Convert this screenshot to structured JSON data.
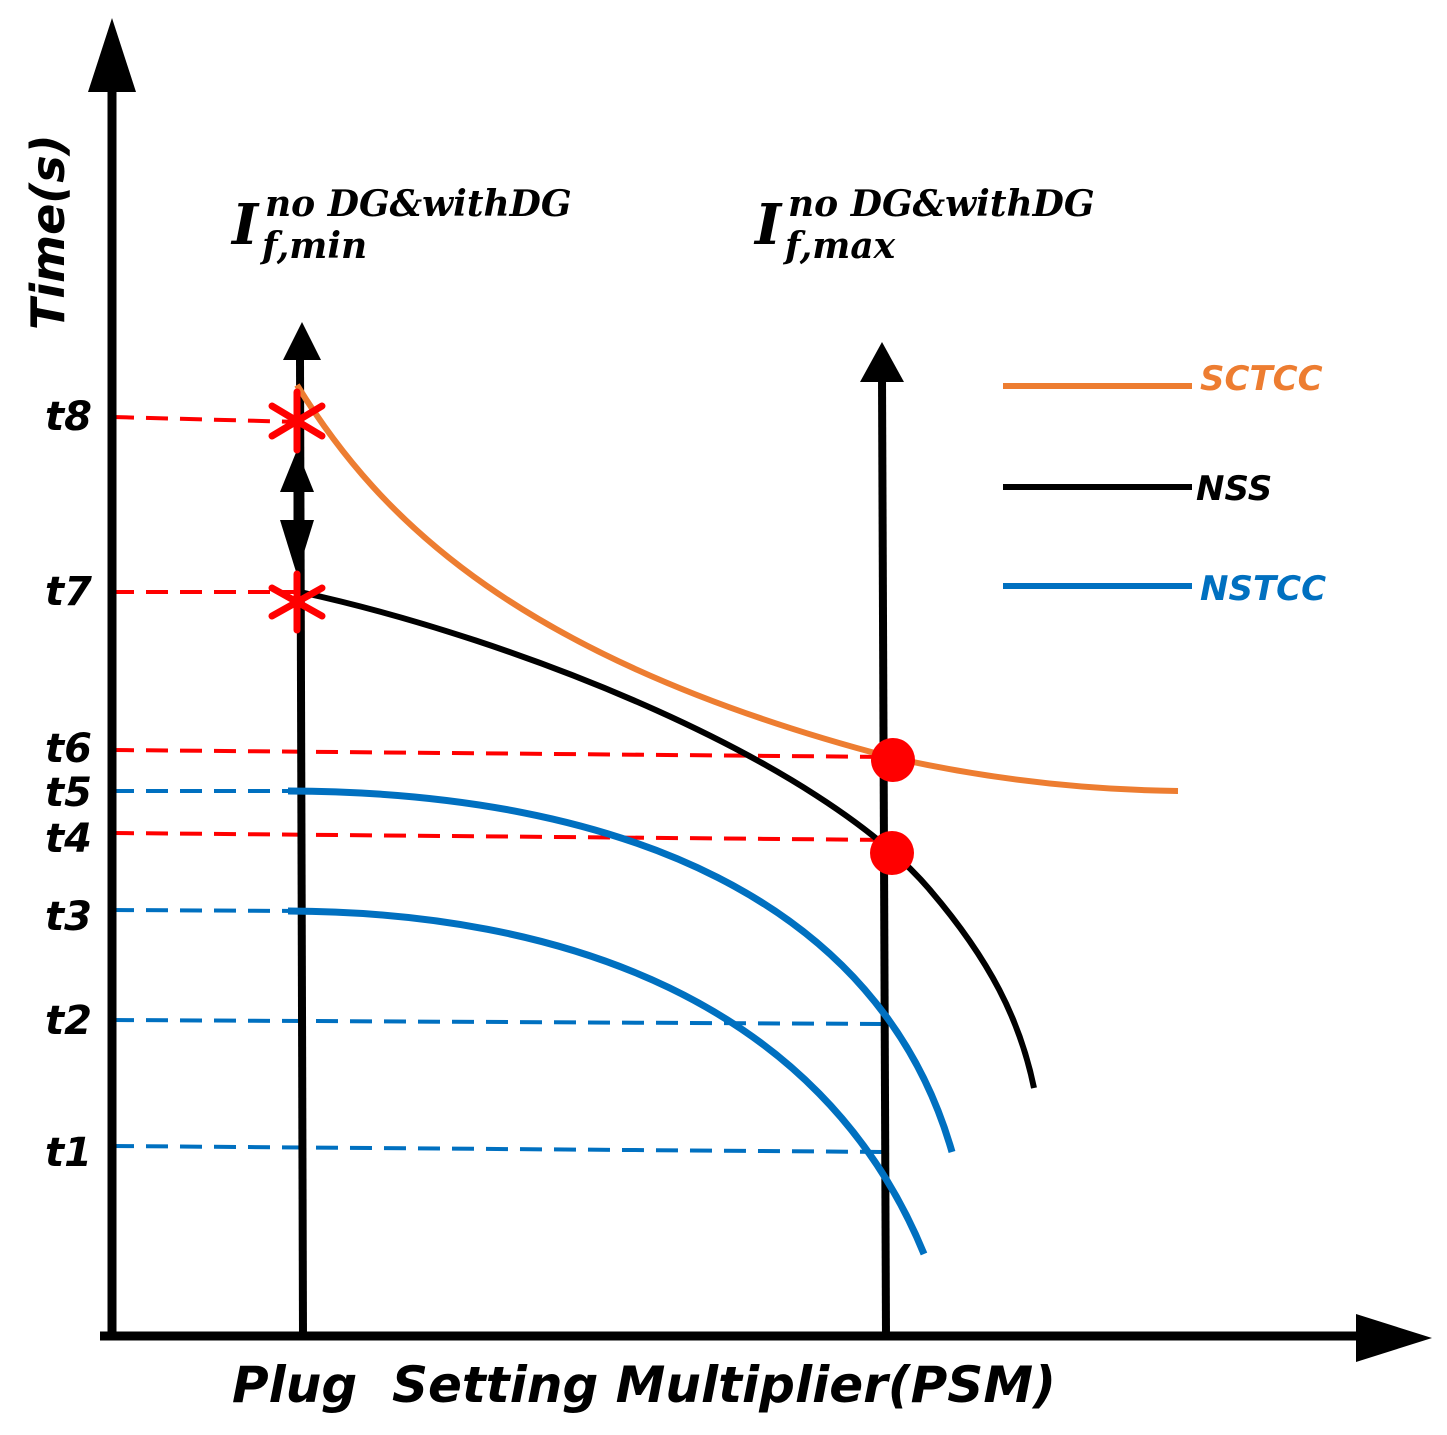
{
  "chart_data": {
    "type": "line",
    "title": "",
    "xlabel": "Plug  Setting Multiplier(PSM)",
    "ylabel": "Time(s)",
    "time_levels": [
      "t1",
      "t2",
      "t3",
      "t4",
      "t5",
      "t6",
      "t7",
      "t8"
    ],
    "fault_markers": [
      {
        "base": "I",
        "sup": "no DG&withDG",
        "sub": "f,min"
      },
      {
        "base": "I",
        "sup": "no DG&withDG",
        "sub": "f,max"
      }
    ],
    "legend": {
      "position": "top-right",
      "entries": [
        {
          "name": "SCTCC",
          "color": "#ED7D31"
        },
        {
          "name": "NSS",
          "color": "#000000"
        },
        {
          "name": "NSTCC",
          "color": "#0070C0"
        }
      ]
    },
    "series": [
      {
        "name": "SCTCC",
        "color": "#ED7D31",
        "starts_at": "t8",
        "meets_max_fault_at": "t6"
      },
      {
        "name": "NSS",
        "color": "#000000",
        "starts_at": "t7",
        "meets_max_fault_at": "t4"
      },
      {
        "name": "NSTCC",
        "color": "#0070C0",
        "starts_at": "t5",
        "meets_max_fault_at": "t2"
      },
      {
        "name": "NSTCC",
        "color": "#0070C0",
        "starts_at": "t3",
        "meets_max_fault_at": "t1"
      }
    ],
    "colors": {
      "axis": "#000000",
      "marker": "#FF0000",
      "guide_red": "#FF0000",
      "guide_blue": "#0070C0"
    }
  }
}
